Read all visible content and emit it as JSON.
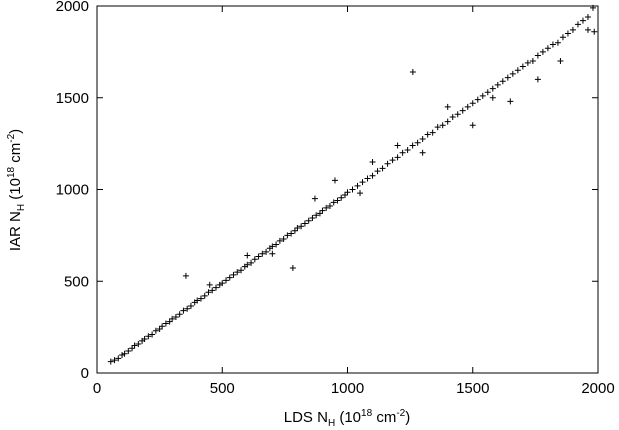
{
  "chart_data": {
    "type": "scatter",
    "xlabel": [
      "LDS N",
      "H",
      " (10",
      "18",
      " cm",
      "-2",
      ")"
    ],
    "ylabel": [
      "IAR N",
      "H",
      " (10",
      "18",
      " cm",
      "-2",
      ")"
    ],
    "color": "#000000",
    "xlim": [
      0,
      2000
    ],
    "xticks": [
      0,
      500,
      1000,
      1500,
      2000
    ],
    "ylim": [
      0,
      2000
    ],
    "yticks": [
      0,
      500,
      1000,
      1500,
      2000
    ],
    "x": [
      55,
      70,
      85,
      100,
      110,
      125,
      140,
      150,
      165,
      180,
      190,
      205,
      220,
      235,
      250,
      260,
      275,
      290,
      300,
      315,
      330,
      345,
      360,
      375,
      390,
      400,
      415,
      430,
      445,
      460,
      475,
      490,
      500,
      515,
      530,
      545,
      560,
      575,
      590,
      600,
      615,
      630,
      645,
      660,
      675,
      690,
      700,
      715,
      730,
      745,
      760,
      775,
      790,
      800,
      815,
      830,
      845,
      860,
      875,
      890,
      900,
      915,
      930,
      945,
      960,
      975,
      990,
      1000,
      1020,
      1040,
      1060,
      1080,
      1100,
      1120,
      1140,
      1160,
      1180,
      1200,
      1220,
      1240,
      1260,
      1280,
      1300,
      1320,
      1340,
      1360,
      1380,
      1400,
      1420,
      1440,
      1460,
      1480,
      1500,
      1520,
      1540,
      1560,
      1580,
      1600,
      1620,
      1640,
      1660,
      1680,
      1700,
      1720,
      1740,
      1760,
      1780,
      1800,
      1820,
      1840,
      1860,
      1880,
      1900,
      1920,
      1940,
      1960,
      1980,
      1261,
      1500,
      1580,
      1650,
      1760,
      1850,
      1960,
      1985,
      782,
      355,
      870,
      950,
      1100,
      600,
      450,
      700,
      1300,
      1400,
      1200,
      1050
    ],
    "values": [
      62,
      70,
      80,
      98,
      105,
      120,
      135,
      150,
      158,
      175,
      185,
      200,
      210,
      230,
      240,
      255,
      270,
      280,
      295,
      305,
      320,
      340,
      350,
      365,
      385,
      395,
      405,
      420,
      440,
      450,
      465,
      480,
      490,
      505,
      520,
      535,
      550,
      560,
      580,
      590,
      600,
      620,
      635,
      650,
      660,
      680,
      690,
      700,
      720,
      730,
      750,
      760,
      775,
      790,
      800,
      815,
      830,
      845,
      860,
      870,
      885,
      900,
      910,
      930,
      940,
      955,
      970,
      985,
      1000,
      1020,
      1040,
      1060,
      1075,
      1100,
      1115,
      1140,
      1160,
      1175,
      1200,
      1215,
      1240,
      1255,
      1275,
      1300,
      1310,
      1340,
      1350,
      1370,
      1395,
      1410,
      1430,
      1450,
      1470,
      1490,
      1510,
      1530,
      1550,
      1570,
      1590,
      1610,
      1630,
      1650,
      1670,
      1690,
      1700,
      1730,
      1750,
      1770,
      1790,
      1800,
      1830,
      1850,
      1870,
      1900,
      1920,
      1940,
      1990,
      1640,
      1350,
      1500,
      1480,
      1600,
      1700,
      1870,
      1860,
      572,
      529,
      950,
      1050,
      1150,
      640,
      480,
      650,
      1200,
      1450,
      1240,
      980
    ]
  }
}
